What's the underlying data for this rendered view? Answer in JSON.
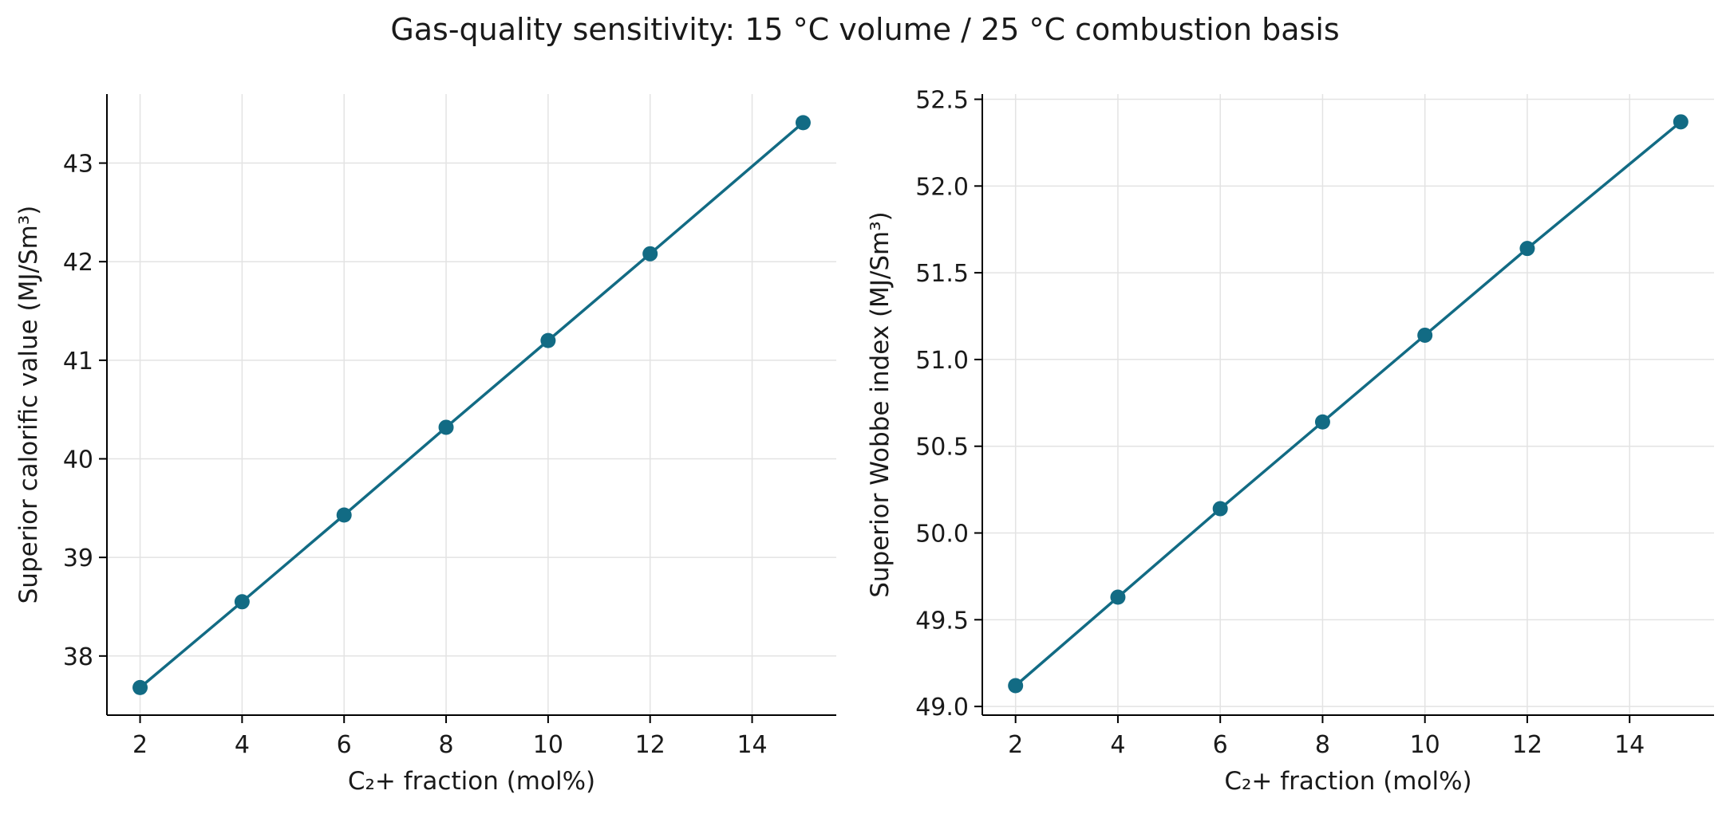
{
  "figure": {
    "title": "Gas-quality sensitivity: 15 °C volume / 25 °C combustion basis"
  },
  "colors": {
    "series": "#126b84",
    "grid": "#e3e3e3",
    "axis": "#000000",
    "background": "#ffffff"
  },
  "chart_data": [
    {
      "type": "line",
      "markers": "circle",
      "xlabel": "C₂+ fraction (mol%)",
      "ylabel": "Superior calorific value (MJ/Sm³)",
      "xlim": [
        1.35,
        15.65
      ],
      "ylim": [
        37.4,
        43.7
      ],
      "xticks": [
        2,
        4,
        6,
        8,
        10,
        12,
        14
      ],
      "yticks": [
        38,
        39,
        40,
        41,
        42,
        43
      ],
      "ytick_labels": [
        "38",
        "39",
        "40",
        "41",
        "42",
        "43"
      ],
      "grid": true,
      "series": [
        {
          "x": [
            2,
            4,
            6,
            8,
            10,
            12,
            15
          ],
          "y": [
            37.68,
            38.55,
            39.43,
            40.32,
            41.2,
            42.08,
            43.41
          ]
        }
      ]
    },
    {
      "type": "line",
      "markers": "circle",
      "xlabel": "C₂+ fraction (mol%)",
      "ylabel": "Superior Wobbe index (MJ/Sm³)",
      "xlim": [
        1.35,
        15.65
      ],
      "ylim": [
        48.95,
        52.53
      ],
      "xticks": [
        2,
        4,
        6,
        8,
        10,
        12,
        14
      ],
      "yticks": [
        49.0,
        49.5,
        50.0,
        50.5,
        51.0,
        51.5,
        52.0,
        52.5
      ],
      "ytick_labels": [
        "49.0",
        "49.5",
        "50.0",
        "50.5",
        "51.0",
        "51.5",
        "52.0",
        "52.5"
      ],
      "grid": true,
      "series": [
        {
          "x": [
            2,
            4,
            6,
            8,
            10,
            12,
            15
          ],
          "y": [
            49.12,
            49.63,
            50.14,
            50.64,
            51.14,
            51.64,
            52.37
          ]
        }
      ]
    }
  ]
}
